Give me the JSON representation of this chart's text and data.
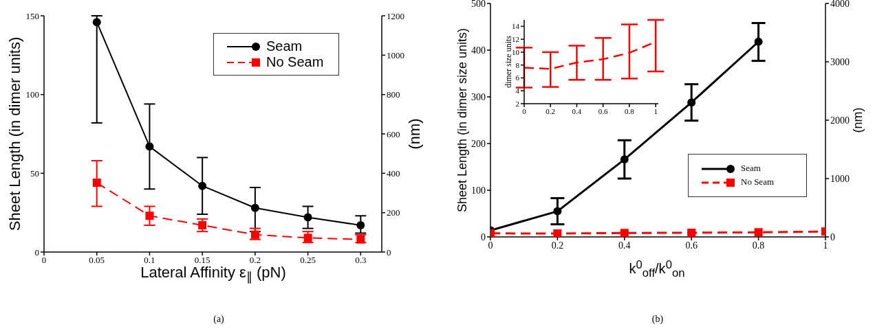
{
  "chart_data": [
    {
      "type": "line",
      "xlabel": "Lateral Affinity ε$_{∥}$ (pN)",
      "ylabel": "Sheet Length  (in dimer units)",
      "y2label": "(nm)",
      "annotations": [
        "(a)"
      ],
      "x": [
        0.05,
        0.1,
        0.15,
        0.2,
        0.25,
        0.3
      ],
      "xlim": [
        0,
        0.32
      ],
      "xticks": [
        0,
        0.05,
        0.1,
        0.15,
        0.2,
        0.25,
        0.3
      ],
      "ylim": [
        0,
        150
      ],
      "yticks": [
        0,
        50,
        100,
        150
      ],
      "y2lim": [
        0,
        1200
      ],
      "y2ticks": [
        0,
        200,
        400,
        600,
        800,
        1000,
        1200
      ],
      "legend": "top right",
      "series": [
        {
          "name": "Seam",
          "color": "#000000",
          "marker": "circle",
          "line_style": "solid",
          "values": [
            146,
            67,
            42,
            28,
            22,
            17
          ],
          "errors": [
            [
              82,
              150
            ],
            [
              40,
              94
            ],
            [
              24,
              60
            ],
            [
              13,
              41
            ],
            [
              15,
              29
            ],
            [
              12,
              23
            ]
          ]
        },
        {
          "name": "No Seam",
          "color": "#ff0000",
          "marker": "square",
          "line_style": "dashed",
          "values": [
            44,
            23,
            17,
            11,
            9,
            8
          ],
          "errors": [
            [
              29,
              58
            ],
            [
              17,
              29
            ],
            [
              13,
              21
            ],
            [
              8,
              15
            ],
            [
              6,
              13
            ],
            [
              6,
              11
            ]
          ]
        }
      ]
    },
    {
      "type": "line",
      "xlabel": "k$^{0}$$_{off}$/k$^{0}$$_{on}$",
      "ylabel": "Sheet Length (in dimer size units)",
      "y2label": "(nm)",
      "annotations": [
        "(b)"
      ],
      "x": [
        0,
        0.2,
        0.4,
        0.6,
        0.8,
        1
      ],
      "xlim": [
        0,
        1
      ],
      "xticks": [
        0,
        0.2,
        0.4,
        0.6,
        0.8,
        1
      ],
      "ylim": [
        0,
        500
      ],
      "yticks": [
        0,
        100,
        200,
        300,
        400,
        500
      ],
      "y2lim": [
        0,
        4000
      ],
      "y2ticks": [
        0,
        1000,
        2000,
        3000,
        4000
      ],
      "legend": "right",
      "series": [
        {
          "name": "Seam",
          "color": "#000000",
          "marker": "circle",
          "line_style": "solid",
          "values": [
            14,
            55,
            166,
            288,
            418,
            null
          ],
          "errors": [
            null,
            [
              27,
              83
            ],
            [
              125,
              207
            ],
            [
              249,
              327
            ],
            [
              377,
              458
            ],
            null
          ]
        },
        {
          "name": "No Seam",
          "color": "#ff0000",
          "marker": "square",
          "line_style": "dashed",
          "values": [
            7.6,
            7.4,
            8.4,
            8.9,
            9.9,
            11.6
          ]
        }
      ]
    },
    {
      "type": "line",
      "ylabel": "dimer size units",
      "x": [
        0,
        0.2,
        0.4,
        0.6,
        0.8,
        1
      ],
      "xlim": [
        0,
        1.02
      ],
      "xticks": [
        0,
        0.2,
        0.4,
        0.6,
        0.8,
        1
      ],
      "ylim": [
        2,
        15
      ],
      "yticks": [
        2,
        4,
        6,
        8,
        10,
        12,
        14
      ],
      "series": [
        {
          "color": "#ff0000",
          "marker": "none",
          "line_style": "dashed",
          "values": [
            7.6,
            7.4,
            8.4,
            8.9,
            9.9,
            11.6
          ],
          "errors": [
            [
              4.5,
              10.7
            ],
            [
              4.6,
              10.0
            ],
            [
              5.7,
              11.0
            ],
            [
              5.7,
              12.2
            ],
            [
              5.9,
              14.3
            ],
            [
              7.0,
              15.0
            ]
          ]
        }
      ]
    }
  ]
}
